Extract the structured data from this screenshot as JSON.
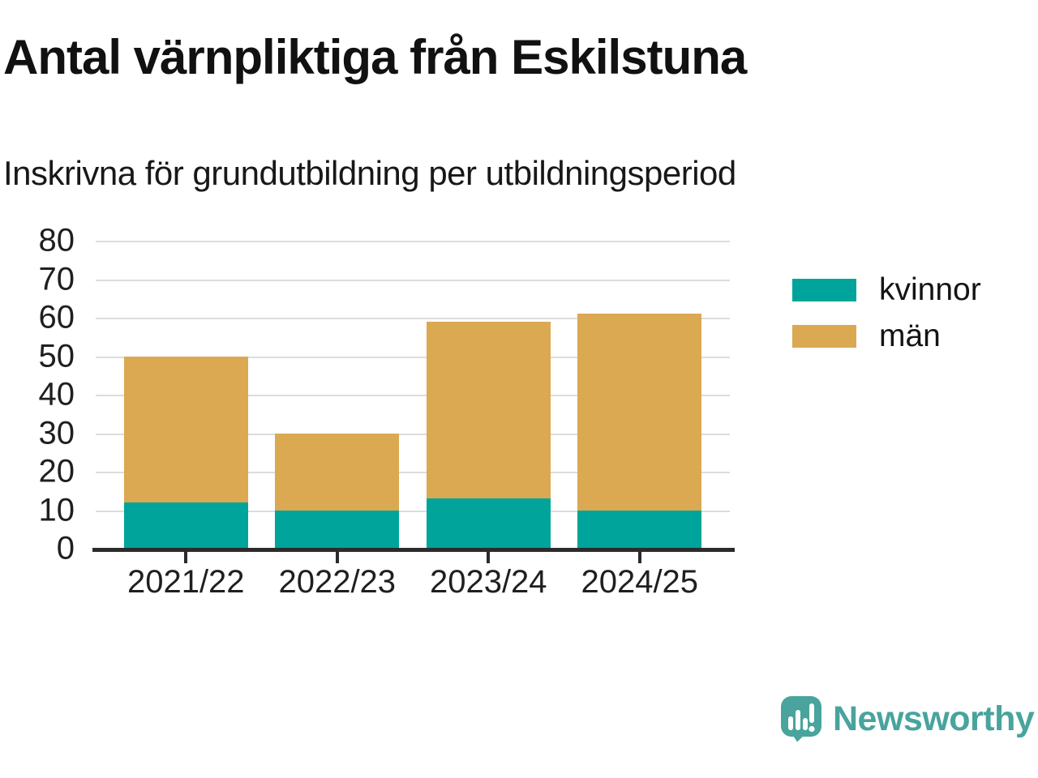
{
  "chart_data": {
    "type": "bar",
    "stacked": true,
    "title": "Antal värnpliktiga från Eskilstuna",
    "subtitle": "Inskrivna för grundutbildning per utbildningsperiod",
    "categories": [
      "2021/22",
      "2022/23",
      "2023/24",
      "2024/25"
    ],
    "series": [
      {
        "name": "kvinnor",
        "color": "#00a49a",
        "values": [
          12,
          10,
          13,
          10
        ]
      },
      {
        "name": "män",
        "color": "#daa952",
        "values": [
          38,
          20,
          46,
          51
        ]
      }
    ],
    "stack_totals": [
      50,
      30,
      59,
      61
    ],
    "xlabel": "",
    "ylabel": "",
    "ylim": [
      0,
      80
    ],
    "ytick_step": 10,
    "grid": true,
    "legend_position": "right"
  },
  "branding": {
    "name": "Newsworthy",
    "color": "#48a49d",
    "icon": "speech-bubble-bar-chart-icon"
  }
}
